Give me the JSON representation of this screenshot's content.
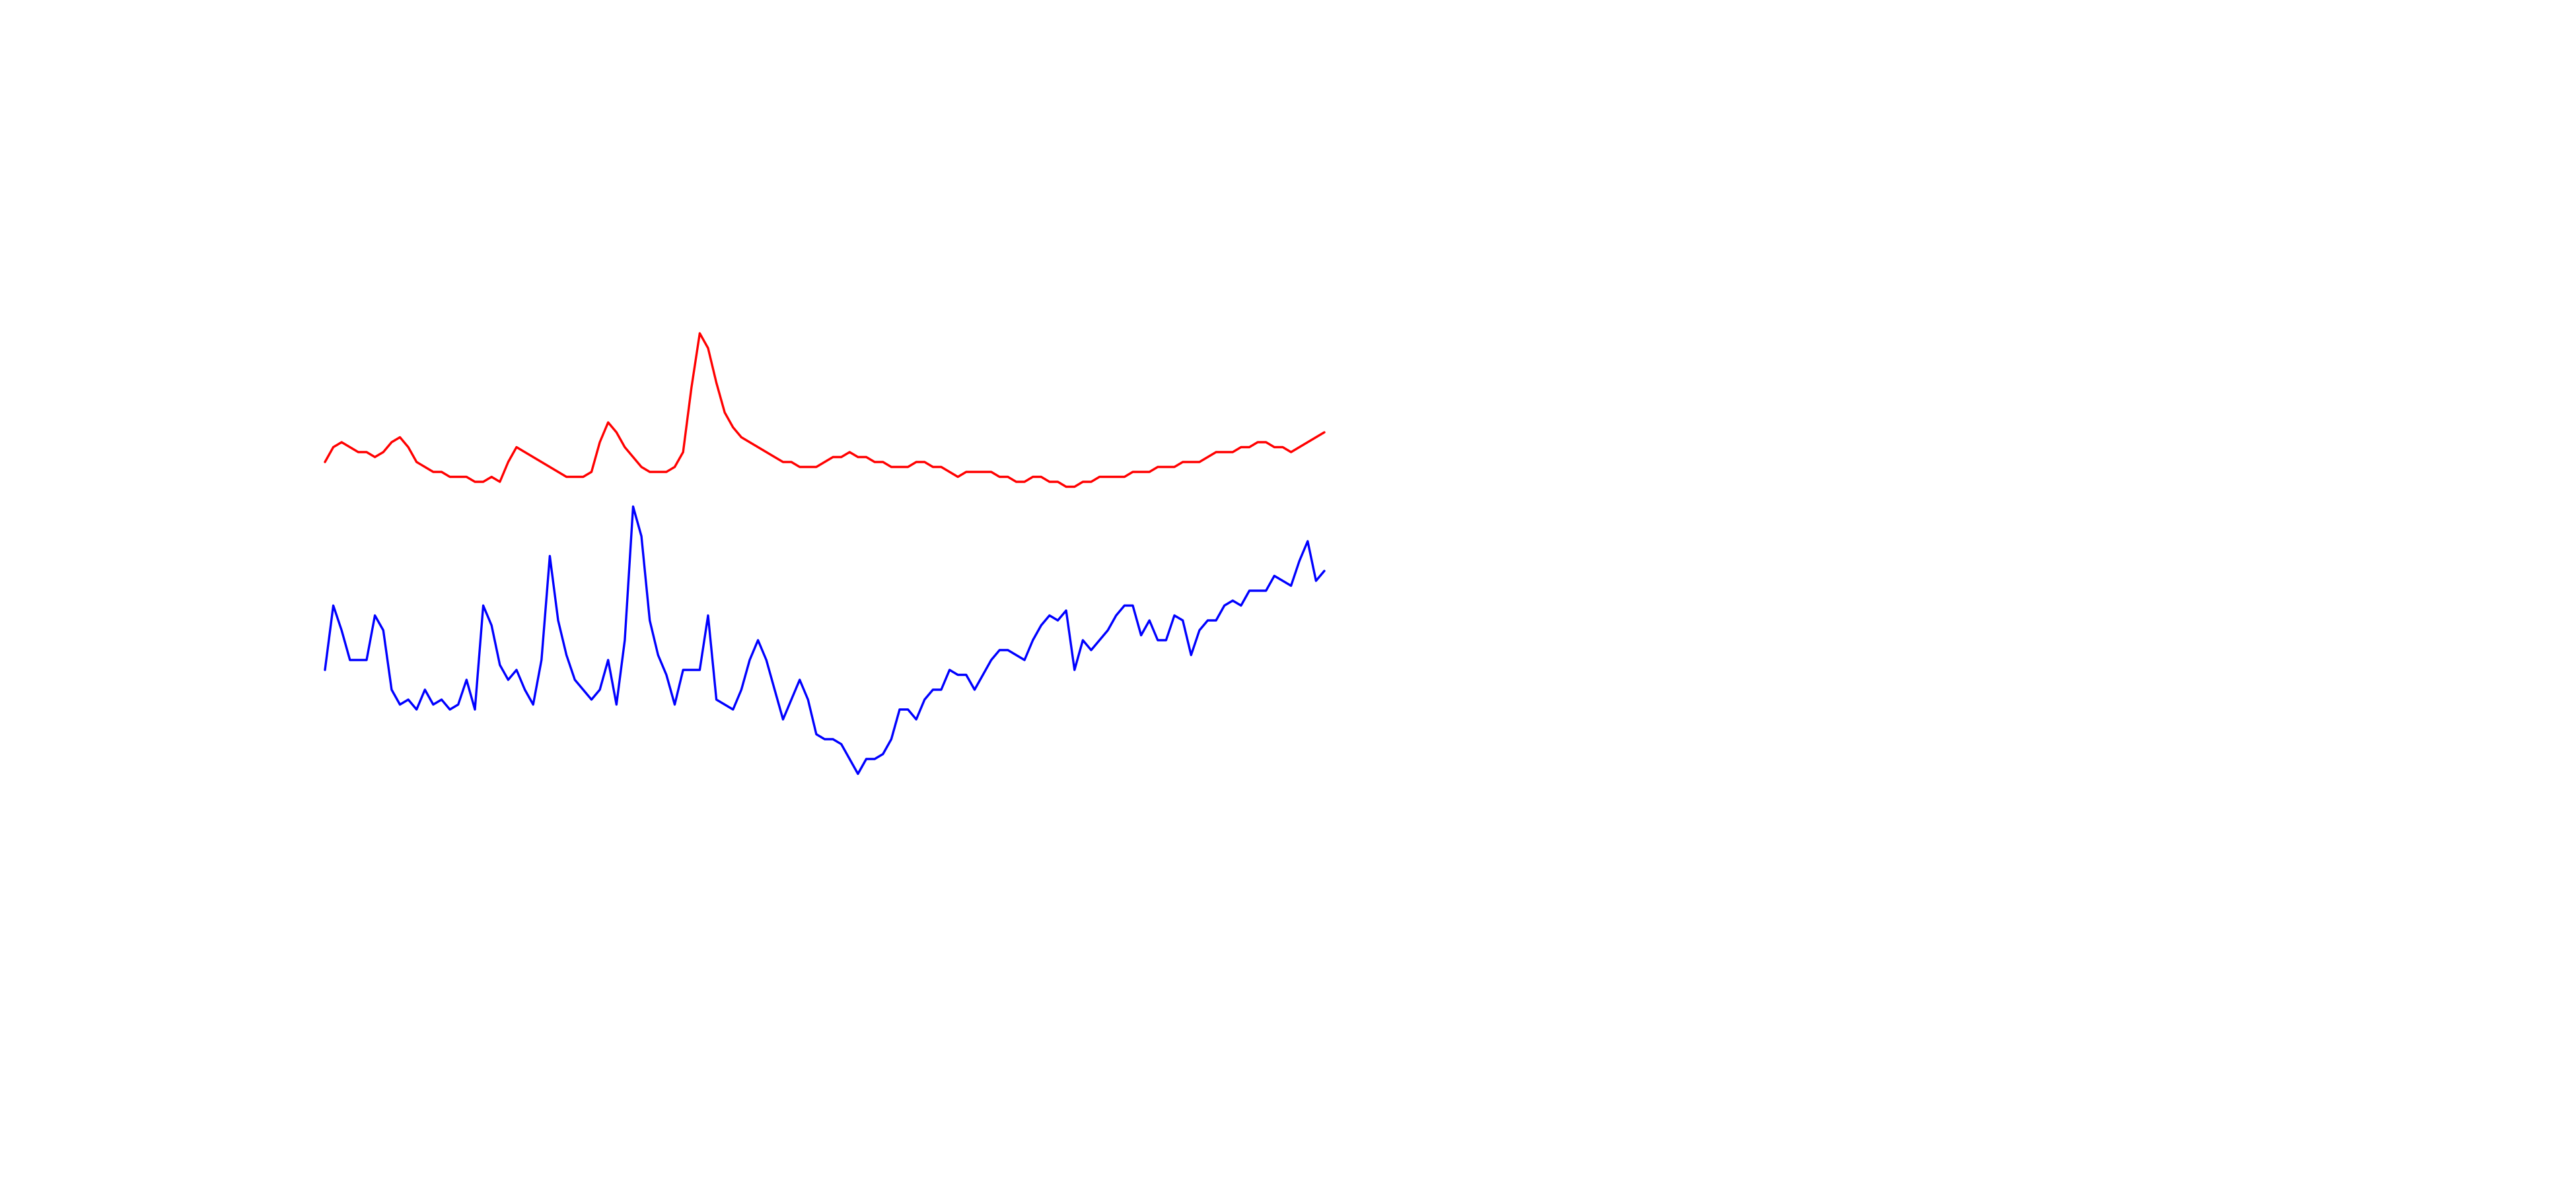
{
  "chart_data": {
    "type": "line",
    "title": "",
    "xlabel": "",
    "ylabel": "",
    "grid": false,
    "legend": "none",
    "x_range": [
      0,
      120
    ],
    "y_range": [
      0,
      140
    ],
    "series": [
      {
        "color": "#ff0000",
        "x": [
          0,
          1,
          2,
          3,
          4,
          5,
          6,
          7,
          8,
          9,
          10,
          11,
          12,
          13,
          14,
          15,
          16,
          17,
          18,
          19,
          20,
          21,
          22,
          23,
          24,
          25,
          26,
          27,
          28,
          29,
          30,
          31,
          32,
          33,
          34,
          35,
          36,
          37,
          38,
          39,
          40,
          41,
          42,
          43,
          44,
          45,
          46,
          47,
          48,
          49,
          50,
          51,
          52,
          53,
          54,
          55,
          56,
          57,
          58,
          59,
          60,
          61,
          62,
          63,
          64,
          65,
          66,
          67,
          68,
          69,
          70,
          71,
          72,
          73,
          74,
          75,
          76,
          77,
          78,
          79,
          80,
          81,
          82,
          83,
          84,
          85,
          86,
          87,
          88,
          89,
          90,
          91,
          92,
          93,
          94,
          95,
          96,
          97,
          98,
          99,
          100,
          101,
          102,
          103,
          104,
          105,
          106,
          107,
          108,
          109,
          110,
          111,
          112,
          113,
          114,
          115,
          116,
          117,
          118,
          119,
          120
        ],
        "values": [
          104,
          107,
          108,
          107,
          106,
          106,
          105,
          106,
          108,
          109,
          107,
          104,
          103,
          102,
          102,
          101,
          101,
          101,
          100,
          100,
          101,
          100,
          104,
          107,
          106,
          105,
          104,
          103,
          102,
          101,
          101,
          101,
          102,
          108,
          112,
          110,
          107,
          105,
          103,
          102,
          102,
          102,
          103,
          106,
          119,
          130,
          127,
          120,
          114,
          111,
          109,
          108,
          107,
          106,
          105,
          104,
          104,
          103,
          103,
          103,
          104,
          105,
          105,
          106,
          105,
          105,
          104,
          104,
          103,
          103,
          103,
          104,
          104,
          103,
          103,
          102,
          101,
          102,
          102,
          102,
          102,
          101,
          101,
          100,
          100,
          101,
          101,
          100,
          100,
          99,
          99,
          100,
          100,
          101,
          101,
          101,
          101,
          102,
          102,
          102,
          103,
          103,
          103,
          104,
          104,
          104,
          105,
          106,
          106,
          106,
          107,
          107,
          108,
          108,
          107,
          107,
          106,
          107,
          108,
          109,
          110
        ]
      },
      {
        "color": "#0000ff",
        "x": [
          0,
          1,
          2,
          3,
          4,
          5,
          6,
          7,
          8,
          9,
          10,
          11,
          12,
          13,
          14,
          15,
          16,
          17,
          18,
          19,
          20,
          21,
          22,
          23,
          24,
          25,
          26,
          27,
          28,
          29,
          30,
          31,
          32,
          33,
          34,
          35,
          36,
          37,
          38,
          39,
          40,
          41,
          42,
          43,
          44,
          45,
          46,
          47,
          48,
          49,
          50,
          51,
          52,
          53,
          54,
          55,
          56,
          57,
          58,
          59,
          60,
          61,
          62,
          63,
          64,
          65,
          66,
          67,
          68,
          69,
          70,
          71,
          72,
          73,
          74,
          75,
          76,
          77,
          78,
          79,
          80,
          81,
          82,
          83,
          84,
          85,
          86,
          87,
          88,
          89,
          90,
          91,
          92,
          93,
          94,
          95,
          96,
          97,
          98,
          99,
          100,
          101,
          102,
          103,
          104,
          105,
          106,
          107,
          108,
          109,
          110,
          111,
          112,
          113,
          114,
          115,
          116,
          117,
          118,
          119,
          120
        ],
        "values": [
          62,
          75,
          70,
          64,
          64,
          64,
          73,
          70,
          58,
          55,
          56,
          54,
          58,
          55,
          56,
          54,
          55,
          60,
          54,
          75,
          71,
          63,
          60,
          62,
          58,
          55,
          64,
          85,
          72,
          65,
          60,
          58,
          56,
          58,
          64,
          55,
          68,
          95,
          89,
          72,
          65,
          61,
          55,
          62,
          62,
          62,
          73,
          56,
          55,
          54,
          58,
          64,
          68,
          64,
          58,
          52,
          56,
          60,
          56,
          49,
          48,
          48,
          47,
          44,
          41,
          44,
          44,
          45,
          48,
          54,
          54,
          52,
          56,
          58,
          58,
          62,
          61,
          61,
          58,
          61,
          64,
          66,
          66,
          65,
          64,
          68,
          71,
          73,
          72,
          74,
          62,
          68,
          66,
          68,
          70,
          73,
          75,
          75,
          69,
          72,
          68,
          68,
          73,
          72,
          65,
          70,
          72,
          72,
          75,
          76,
          75,
          78,
          78,
          78,
          81,
          80,
          79,
          84,
          88,
          80,
          82
        ]
      }
    ]
  }
}
